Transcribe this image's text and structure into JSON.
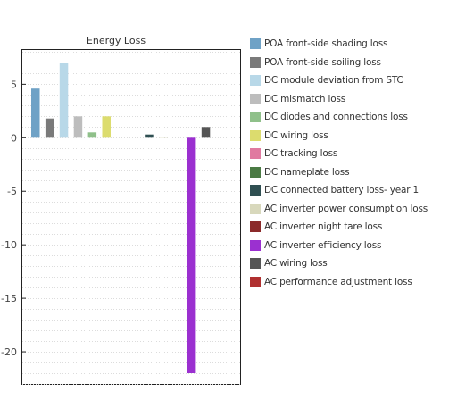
{
  "chart_data": {
    "type": "bar",
    "title": "Energy Loss",
    "xlabel": "",
    "ylabel": "",
    "ylim": [
      -23,
      8.2
    ],
    "y_ticks": [
      5,
      0,
      -5,
      -10,
      -15,
      -20
    ],
    "y_tick_labels": [
      "5",
      "0",
      "-5",
      "-10",
      "-15",
      "-20"
    ],
    "grid": true,
    "legend_position": "right",
    "series": [
      {
        "name": "POA front-side shading loss",
        "value": 4.6,
        "color": "#6fa2c6"
      },
      {
        "name": "POA front-side soiling loss",
        "value": 1.8,
        "color": "#7a7a7a"
      },
      {
        "name": "DC module deviation from STC",
        "value": 7.0,
        "color": "#b8d8e8"
      },
      {
        "name": "DC mismatch loss",
        "value": 2.0,
        "color": "#bdbdbd"
      },
      {
        "name": "DC diodes and connections loss",
        "value": 0.5,
        "color": "#8fc08a"
      },
      {
        "name": "DC wiring loss",
        "value": 2.0,
        "color": "#dcdc6e"
      },
      {
        "name": "DC tracking loss",
        "value": 0.0,
        "color": "#e07aa0"
      },
      {
        "name": "DC nameplate loss",
        "value": 0.0,
        "color": "#4a7a44"
      },
      {
        "name": "DC connected battery loss- year 1",
        "value": 0.3,
        "color": "#2f4f52"
      },
      {
        "name": "AC inverter power consumption loss",
        "value": 0.1,
        "color": "#d8d8bc"
      },
      {
        "name": "AC inverter night tare loss",
        "value": 0.0,
        "color": "#8b2a2a"
      },
      {
        "name": "AC inverter efficiency loss",
        "value": -22.0,
        "color": "#9b30d0"
      },
      {
        "name": "AC wiring loss",
        "value": 1.0,
        "color": "#555555"
      },
      {
        "name": "AC performance adjustment loss",
        "value": 0.0,
        "color": "#b03030"
      }
    ]
  }
}
